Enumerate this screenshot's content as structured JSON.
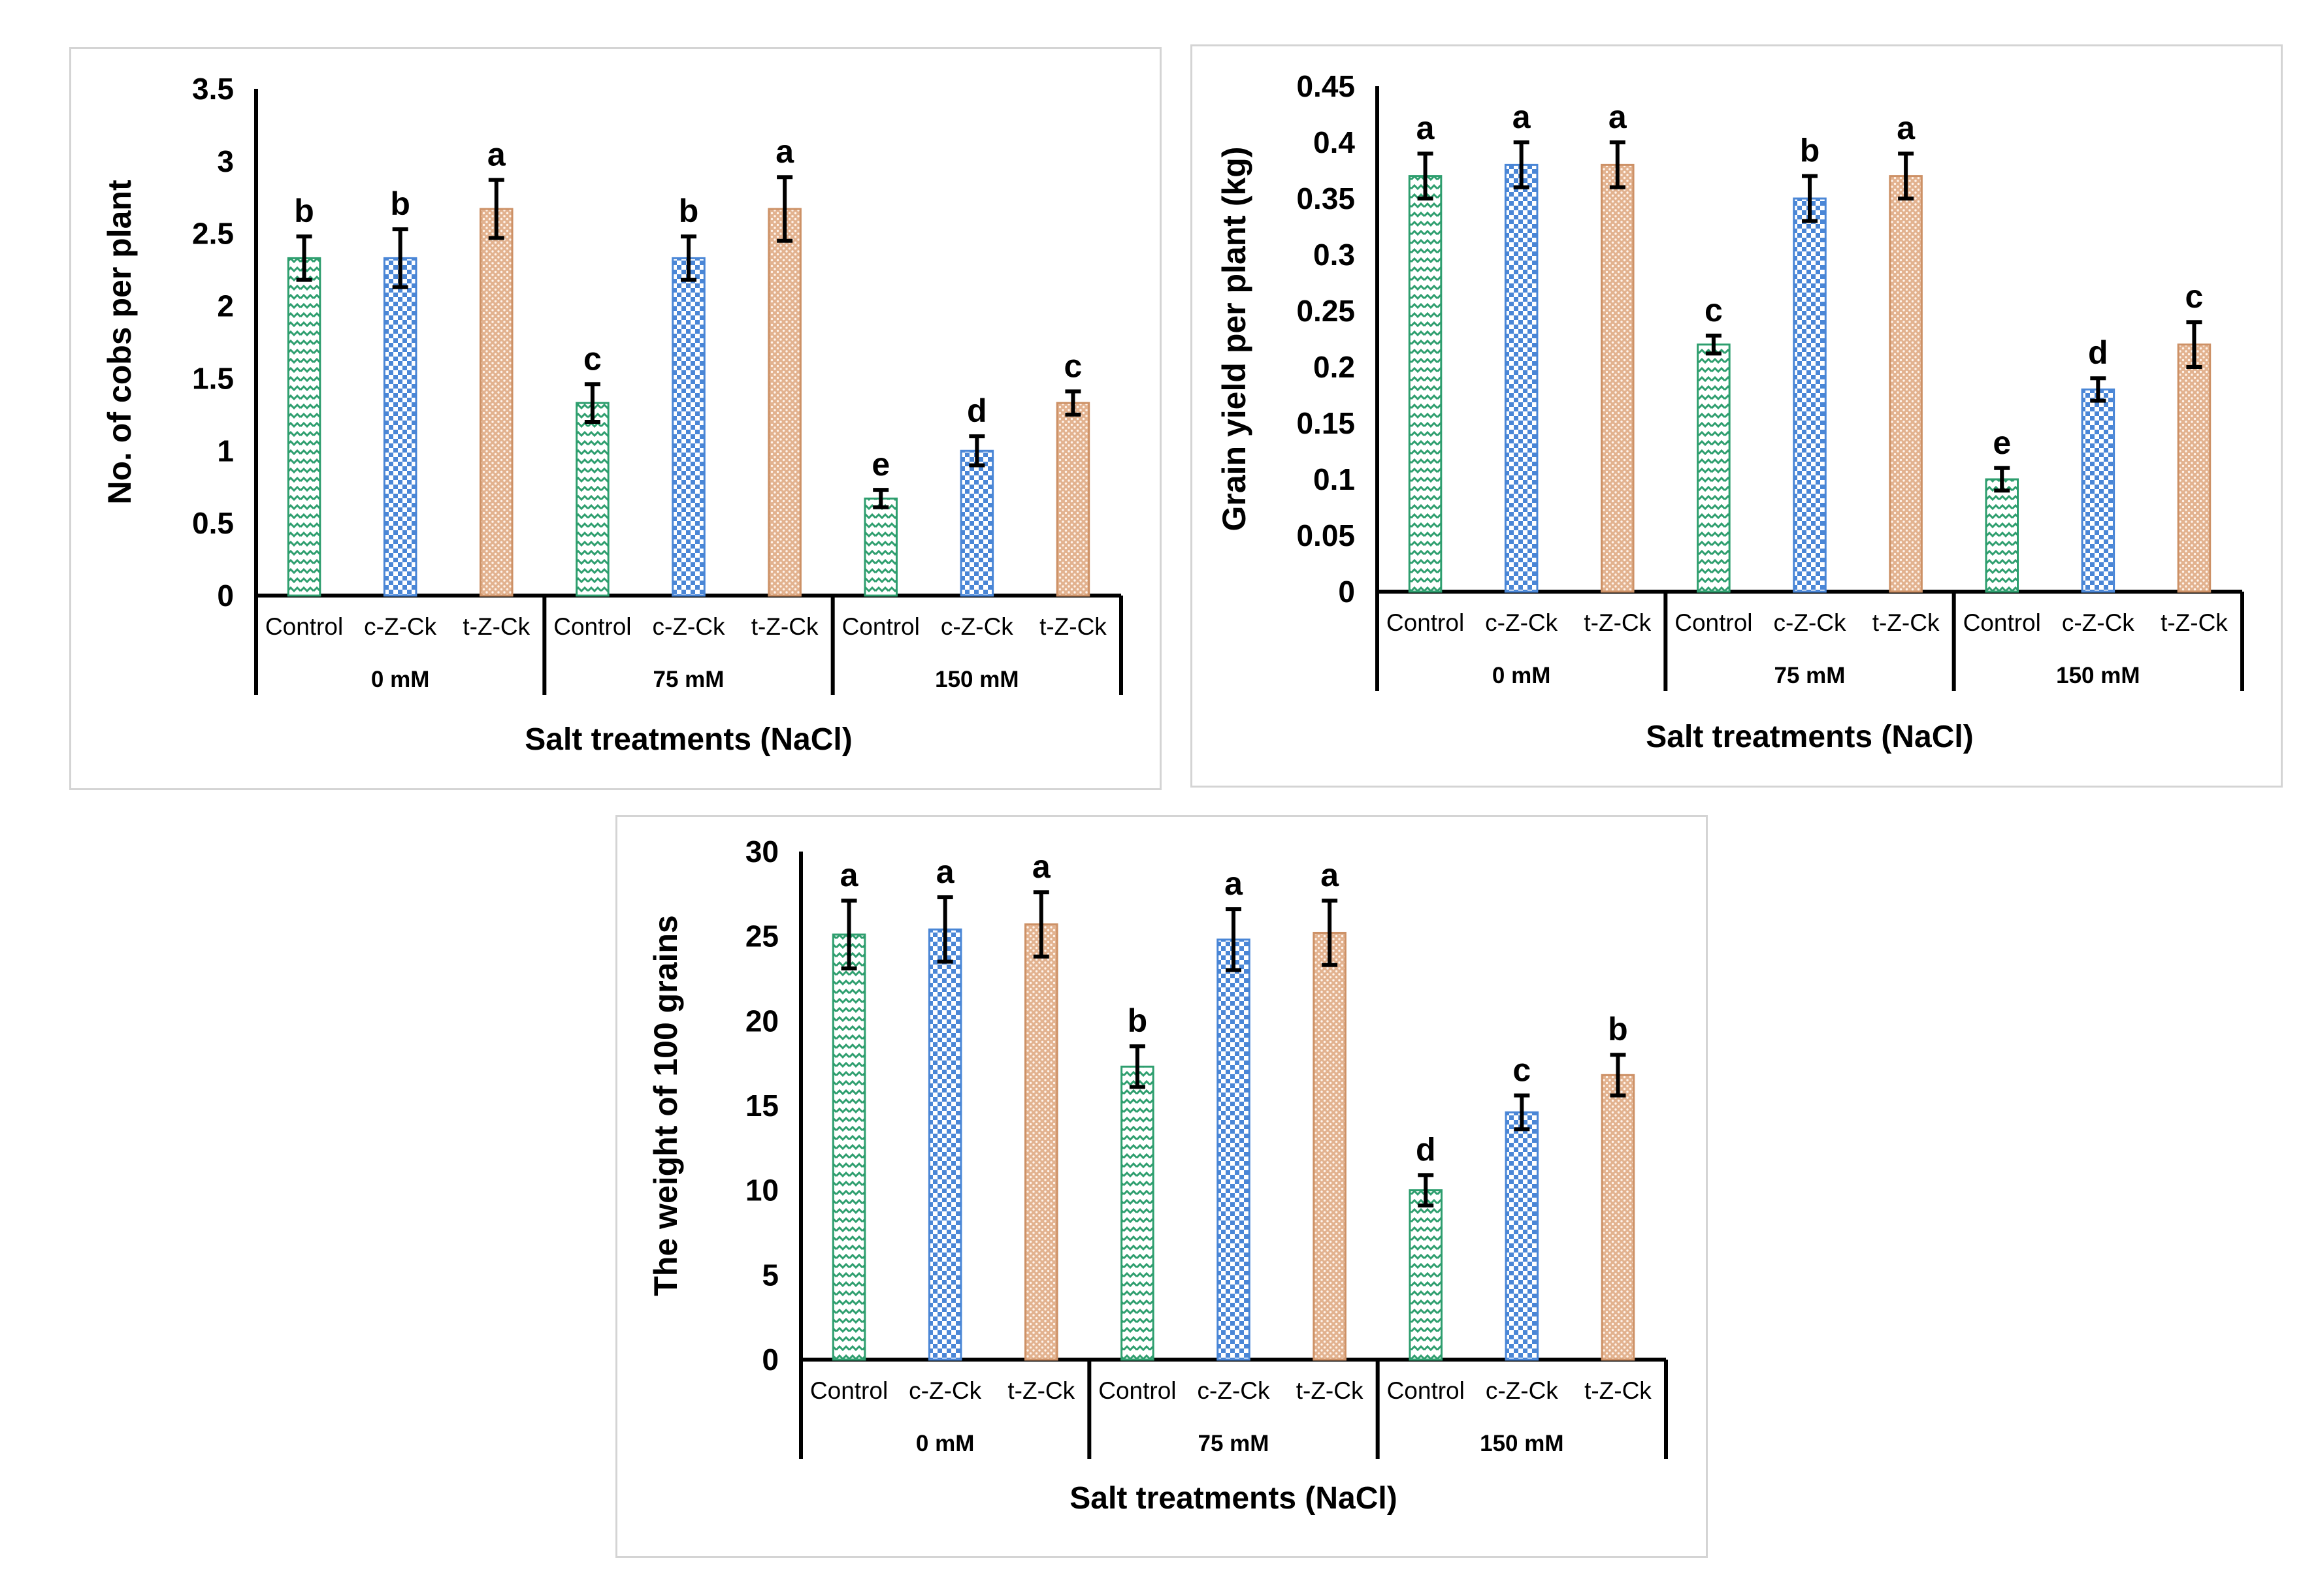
{
  "colors": {
    "Control": "#2e9e6e",
    "c-Z-Ck": "#4a86d6",
    "t-Z-Ck": "#cd9166"
  },
  "chart_data": [
    {
      "type": "bar",
      "ylabel": "No. of cobs per plant",
      "xlabel": "Salt treatments (NaCl)",
      "ylim": [
        0,
        3.5
      ],
      "yticks": [
        "0",
        "0.5",
        "1",
        "1.5",
        "2",
        "2.5",
        "3",
        "3.5"
      ],
      "groups": [
        "0 mM",
        "75 mM",
        "150 mM"
      ],
      "categories": [
        "Control",
        "c-Z-Ck",
        "t-Z-Ck"
      ],
      "values": [
        2.33,
        2.33,
        2.67,
        1.33,
        2.33,
        2.67,
        0.67,
        1.0,
        1.33
      ],
      "errors": [
        0.15,
        0.2,
        0.2,
        0.13,
        0.15,
        0.22,
        0.06,
        0.1,
        0.08
      ],
      "labels": [
        "b",
        "b",
        "a",
        "c",
        "b",
        "a",
        "e",
        "d",
        "c"
      ]
    },
    {
      "type": "bar",
      "ylabel": "Grain yield per plant (kg)",
      "xlabel": "Salt treatments (NaCl)",
      "ylim": [
        0,
        0.45
      ],
      "yticks": [
        "0",
        "0.05",
        "0.1",
        "0.15",
        "0.2",
        "0.25",
        "0.3",
        "0.35",
        "0.4",
        "0.45"
      ],
      "groups": [
        "0 mM",
        "75 mM",
        "150 mM"
      ],
      "categories": [
        "Control",
        "c-Z-Ck",
        "t-Z-Ck"
      ],
      "values": [
        0.37,
        0.38,
        0.38,
        0.22,
        0.35,
        0.37,
        0.1,
        0.18,
        0.22
      ],
      "errors": [
        0.02,
        0.02,
        0.02,
        0.008,
        0.02,
        0.02,
        0.01,
        0.01,
        0.02
      ],
      "labels": [
        "a",
        "a",
        "a",
        "c",
        "b",
        "a",
        "e",
        "d",
        "c"
      ]
    },
    {
      "type": "bar",
      "ylabel": "The weight of 100 grains",
      "xlabel": "Salt treatments (NaCl)",
      "ylim": [
        0,
        30
      ],
      "yticks": [
        "0",
        "5",
        "10",
        "15",
        "20",
        "25",
        "30"
      ],
      "groups": [
        "0 mM",
        "75 mM",
        "150 mM"
      ],
      "categories": [
        "Control",
        "c-Z-Ck",
        "t-Z-Ck"
      ],
      "values": [
        25.1,
        25.4,
        25.7,
        17.3,
        24.8,
        25.2,
        10.0,
        14.6,
        16.8
      ],
      "errors": [
        2.0,
        1.9,
        1.9,
        1.2,
        1.8,
        1.9,
        0.9,
        1.0,
        1.2
      ],
      "labels": [
        "a",
        "a",
        "a",
        "b",
        "a",
        "a",
        "d",
        "c",
        "b"
      ]
    }
  ]
}
